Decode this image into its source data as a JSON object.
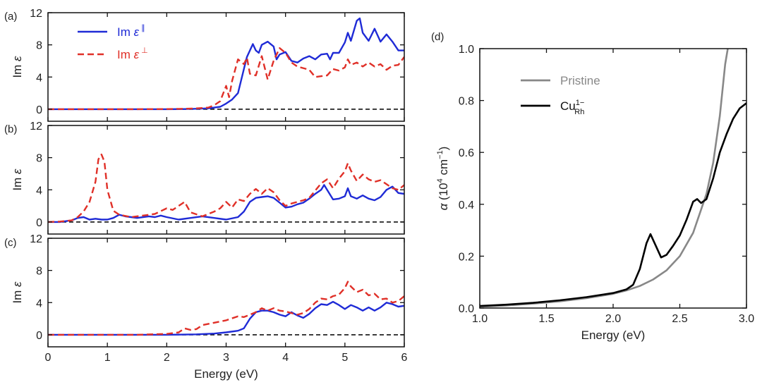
{
  "chart_data": [
    {
      "panel_label": "(a)",
      "type": "line",
      "title": "",
      "xlabel": "",
      "ylabel_main": "Im",
      "ylabel_symbol": "ε",
      "xlim": [
        0,
        6
      ],
      "ylim": [
        -1.5,
        12
      ],
      "xticks": [
        0,
        1,
        2,
        3,
        4,
        5,
        6
      ],
      "yticks": [
        0,
        4,
        8,
        12
      ],
      "show_xticklabels": false,
      "legend_position": "top-left",
      "series": [
        {
          "name": "Im ε∥",
          "legend_main": "Im",
          "legend_symbol": "ε",
          "legend_sup": "∥",
          "color": "#1f2bd6",
          "style": "solid",
          "x": [
            0,
            0.5,
            1,
            1.5,
            2,
            2.3,
            2.5,
            2.7,
            2.9,
            3.0,
            3.1,
            3.2,
            3.3,
            3.35,
            3.45,
            3.5,
            3.55,
            3.6,
            3.7,
            3.8,
            3.85,
            3.9,
            4.0,
            4.1,
            4.2,
            4.3,
            4.4,
            4.5,
            4.6,
            4.7,
            4.75,
            4.8,
            4.9,
            5.0,
            5.05,
            5.1,
            5.2,
            5.25,
            5.3,
            5.4,
            5.5,
            5.6,
            5.7,
            5.8,
            5.9,
            6.0
          ],
          "y": [
            0,
            0,
            0,
            0,
            0,
            0.02,
            0.05,
            0.1,
            0.3,
            0.7,
            1.2,
            2.0,
            5.0,
            6.5,
            8.1,
            7.3,
            7.0,
            8.0,
            8.4,
            7.8,
            6.2,
            6.8,
            7.1,
            6.0,
            5.8,
            6.3,
            6.6,
            6.2,
            6.8,
            6.9,
            6.2,
            7.0,
            7.0,
            8.3,
            9.5,
            8.5,
            11.0,
            11.3,
            9.5,
            8.5,
            10.0,
            8.4,
            9.3,
            8.4,
            7.3,
            7.3
          ]
        },
        {
          "name": "Im ε⊥",
          "legend_main": "Im",
          "legend_symbol": "ε",
          "legend_sup": "⊥",
          "color": "#e03028",
          "style": "dashed",
          "x": [
            0,
            0.5,
            1,
            1.5,
            2,
            2.3,
            2.5,
            2.7,
            2.8,
            2.9,
            3.0,
            3.05,
            3.1,
            3.2,
            3.3,
            3.35,
            3.4,
            3.5,
            3.6,
            3.7,
            3.8,
            3.9,
            4.0,
            4.1,
            4.2,
            4.4,
            4.5,
            4.6,
            4.7,
            4.8,
            4.9,
            5.0,
            5.05,
            5.1,
            5.2,
            5.3,
            5.4,
            5.5,
            5.6,
            5.7,
            5.8,
            5.9,
            6.0
          ],
          "y": [
            0,
            0,
            0,
            0,
            0.02,
            0.05,
            0.1,
            0.2,
            0.5,
            1.0,
            2.9,
            1.5,
            3.5,
            6.2,
            5.6,
            6.4,
            4.4,
            4.2,
            6.6,
            3.7,
            6.0,
            7.6,
            7.0,
            5.8,
            5.3,
            4.9,
            4.0,
            4.1,
            4.2,
            5.0,
            4.8,
            5.2,
            6.2,
            5.5,
            5.8,
            5.3,
            5.8,
            5.3,
            5.6,
            4.9,
            5.4,
            5.5,
            6.5
          ]
        }
      ]
    },
    {
      "panel_label": "(b)",
      "type": "line",
      "title": "",
      "xlabel": "",
      "ylabel_main": "Im",
      "ylabel_symbol": "ε",
      "xlim": [
        0,
        6
      ],
      "ylim": [
        -1.5,
        12
      ],
      "xticks": [
        0,
        1,
        2,
        3,
        4,
        5,
        6
      ],
      "yticks": [
        0,
        4,
        8,
        12
      ],
      "show_xticklabels": false,
      "series": [
        {
          "name": "Im ε∥",
          "color": "#1f2bd6",
          "style": "solid",
          "x": [
            0,
            0.2,
            0.4,
            0.5,
            0.6,
            0.7,
            0.8,
            0.9,
            1.0,
            1.1,
            1.2,
            1.3,
            1.4,
            1.5,
            1.6,
            1.7,
            1.8,
            1.9,
            2.0,
            2.2,
            2.4,
            2.6,
            2.8,
            3.0,
            3.2,
            3.3,
            3.4,
            3.5,
            3.6,
            3.7,
            3.8,
            3.9,
            4.0,
            4.1,
            4.2,
            4.3,
            4.4,
            4.5,
            4.6,
            4.65,
            4.7,
            4.8,
            4.9,
            5.0,
            5.05,
            5.1,
            5.2,
            5.3,
            5.4,
            5.5,
            5.6,
            5.7,
            5.8,
            5.9,
            6.0
          ],
          "y": [
            0,
            0,
            0.2,
            0.5,
            0.6,
            0.3,
            0.4,
            0.3,
            0.3,
            0.5,
            0.9,
            0.7,
            0.6,
            0.5,
            0.6,
            0.7,
            0.6,
            0.8,
            0.6,
            0.3,
            0.5,
            0.7,
            0.5,
            0.3,
            0.6,
            1.3,
            2.5,
            3.0,
            3.1,
            3.2,
            3.0,
            2.4,
            1.8,
            1.9,
            2.2,
            2.4,
            2.9,
            3.5,
            4.0,
            4.6,
            4.0,
            2.8,
            2.9,
            3.2,
            4.2,
            3.2,
            2.9,
            3.3,
            2.9,
            2.7,
            3.1,
            4.0,
            4.4,
            3.6,
            3.5
          ]
        },
        {
          "name": "Im ε⊥",
          "color": "#e03028",
          "style": "dashed",
          "x": [
            0,
            0.2,
            0.4,
            0.5,
            0.6,
            0.7,
            0.8,
            0.85,
            0.9,
            0.95,
            1.0,
            1.1,
            1.2,
            1.4,
            1.6,
            1.8,
            2.0,
            2.1,
            2.2,
            2.3,
            2.4,
            2.6,
            2.8,
            2.9,
            3.0,
            3.1,
            3.2,
            3.3,
            3.4,
            3.5,
            3.6,
            3.7,
            3.8,
            3.9,
            4.0,
            4.1,
            4.2,
            4.3,
            4.4,
            4.5,
            4.6,
            4.7,
            4.8,
            4.9,
            5.0,
            5.05,
            5.1,
            5.2,
            5.3,
            5.4,
            5.5,
            5.6,
            5.7,
            5.8,
            5.9,
            6.0
          ],
          "y": [
            0,
            0.05,
            0.2,
            0.6,
            1.3,
            2.5,
            5.0,
            7.8,
            8.4,
            7.5,
            4.0,
            1.4,
            0.9,
            0.6,
            0.8,
            1.0,
            1.7,
            1.5,
            2.0,
            2.5,
            1.2,
            0.7,
            1.3,
            1.7,
            2.5,
            1.8,
            2.8,
            2.6,
            3.5,
            4.1,
            3.5,
            4.2,
            3.7,
            2.7,
            2.0,
            2.3,
            2.5,
            2.7,
            3.0,
            3.9,
            4.8,
            5.3,
            4.2,
            5.4,
            6.3,
            7.3,
            6.4,
            5.1,
            5.9,
            5.3,
            5.0,
            5.2,
            4.7,
            4.2,
            4.0,
            4.6
          ]
        }
      ]
    },
    {
      "panel_label": "(c)",
      "type": "line",
      "title": "",
      "xlabel": "Energy (eV)",
      "ylabel_main": "Im",
      "ylabel_symbol": "ε",
      "xlim": [
        0,
        6
      ],
      "ylim": [
        -1.5,
        12
      ],
      "xticks": [
        0,
        1,
        2,
        3,
        4,
        5,
        6
      ],
      "yticks": [
        0,
        4,
        8,
        12
      ],
      "show_xticklabels": true,
      "series": [
        {
          "name": "Im ε∥",
          "color": "#1f2bd6",
          "style": "solid",
          "x": [
            0,
            1,
            2,
            2.5,
            2.8,
            3.0,
            3.2,
            3.3,
            3.4,
            3.5,
            3.6,
            3.7,
            3.8,
            3.9,
            4.0,
            4.1,
            4.2,
            4.3,
            4.4,
            4.5,
            4.6,
            4.7,
            4.8,
            4.9,
            5.0,
            5.1,
            5.2,
            5.3,
            5.4,
            5.5,
            5.6,
            5.7,
            5.8,
            5.9,
            6.0
          ],
          "y": [
            0,
            0,
            0,
            0.05,
            0.15,
            0.3,
            0.5,
            0.8,
            2.0,
            2.8,
            3.0,
            3.0,
            2.8,
            2.5,
            2.3,
            2.8,
            2.4,
            2.1,
            2.6,
            3.3,
            3.8,
            3.7,
            4.1,
            3.7,
            3.2,
            3.7,
            3.4,
            3.0,
            3.4,
            3.0,
            3.4,
            4.0,
            3.8,
            3.5,
            3.6
          ]
        },
        {
          "name": "Im ε⊥",
          "color": "#e03028",
          "style": "dashed",
          "x": [
            0,
            1,
            1.5,
            2.0,
            2.2,
            2.3,
            2.4,
            2.5,
            2.6,
            2.8,
            3.0,
            3.2,
            3.3,
            3.4,
            3.5,
            3.6,
            3.7,
            3.8,
            3.9,
            4.0,
            4.1,
            4.2,
            4.3,
            4.4,
            4.5,
            4.6,
            4.7,
            4.8,
            4.9,
            5.0,
            5.05,
            5.1,
            5.2,
            5.3,
            5.4,
            5.5,
            5.6,
            5.7,
            5.8,
            5.9,
            6.0
          ],
          "y": [
            0,
            0,
            0,
            0.1,
            0.3,
            0.8,
            0.6,
            0.7,
            1.2,
            1.5,
            1.8,
            2.3,
            2.2,
            2.5,
            2.8,
            3.3,
            3.0,
            3.3,
            3.0,
            2.9,
            2.7,
            2.5,
            2.7,
            3.2,
            4.0,
            4.5,
            4.4,
            4.8,
            5.0,
            5.8,
            6.6,
            6.0,
            5.3,
            5.6,
            4.9,
            5.1,
            4.4,
            4.5,
            4.0,
            4.2,
            4.8
          ]
        }
      ]
    },
    {
      "panel_label": "(d)",
      "type": "line",
      "title": "",
      "xlabel": "Energy (eV)",
      "ylabel_main": "α",
      "ylabel_units": "(10",
      "ylabel_exp1": "4",
      "ylabel_units2": " cm",
      "ylabel_exp2": "−1",
      "ylabel_close": ")",
      "xlim": [
        1.0,
        3.0
      ],
      "ylim": [
        0.0,
        1.0
      ],
      "xticks": [
        1.0,
        1.5,
        2.0,
        2.5,
        3.0
      ],
      "xticklabels": [
        "1.0",
        "1.5",
        "2.0",
        "2.5",
        "3.0"
      ],
      "yticks": [
        0.0,
        0.2,
        0.4,
        0.6,
        0.8,
        1.0
      ],
      "yticklabels": [
        "0.0",
        "0.2",
        "0.4",
        "0.6",
        "0.8",
        "1.0"
      ],
      "legend_position": "top-left",
      "series": [
        {
          "name": "Pristine",
          "legend_main": "Pristine",
          "color": "#888888",
          "style": "solid",
          "x": [
            1.0,
            1.2,
            1.4,
            1.6,
            1.8,
            2.0,
            2.1,
            2.2,
            2.3,
            2.4,
            2.5,
            2.6,
            2.7,
            2.75,
            2.8,
            2.82,
            2.84,
            2.86
          ],
          "y": [
            0.005,
            0.01,
            0.017,
            0.026,
            0.038,
            0.055,
            0.068,
            0.085,
            0.11,
            0.145,
            0.2,
            0.29,
            0.44,
            0.56,
            0.74,
            0.84,
            0.94,
            1.0
          ]
        },
        {
          "name": "Cu_Rh^1−",
          "legend_main": "Cu",
          "legend_sub": "Rh",
          "legend_sup": "1−",
          "color": "#000000",
          "style": "solid",
          "x": [
            1.0,
            1.2,
            1.4,
            1.6,
            1.8,
            2.0,
            2.1,
            2.15,
            2.2,
            2.25,
            2.28,
            2.32,
            2.36,
            2.4,
            2.45,
            2.5,
            2.55,
            2.6,
            2.63,
            2.66,
            2.7,
            2.75,
            2.8,
            2.85,
            2.9,
            2.95,
            3.0
          ],
          "y": [
            0.008,
            0.013,
            0.02,
            0.03,
            0.042,
            0.058,
            0.072,
            0.09,
            0.15,
            0.25,
            0.285,
            0.24,
            0.195,
            0.205,
            0.24,
            0.28,
            0.34,
            0.41,
            0.42,
            0.405,
            0.42,
            0.5,
            0.6,
            0.67,
            0.73,
            0.77,
            0.79
          ]
        }
      ]
    }
  ]
}
